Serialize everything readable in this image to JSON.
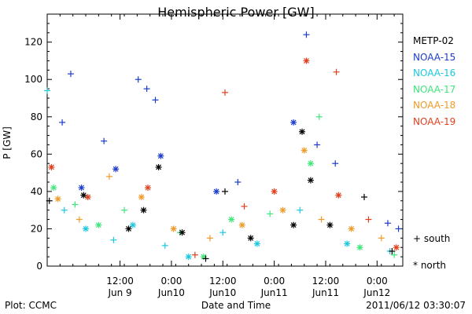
{
  "title": "Hemispheric Power [GW]",
  "footer": {
    "left": "Plot: CCMC",
    "center": "Date and Time",
    "right": "2011/06/12 03:30:07"
  },
  "legend": [
    {
      "name": "METP-02",
      "color": "#000000"
    },
    {
      "name": "NOAA-15",
      "color": "#1c3ccc"
    },
    {
      "name": "NOAA-16",
      "color": "#1cc8e0"
    },
    {
      "name": "NOAA-17",
      "color": "#3ee67a"
    },
    {
      "name": "NOAA-18",
      "color": "#f09a28"
    },
    {
      "name": "NOAA-19",
      "color": "#e0401e"
    }
  ],
  "marker_legend": [
    {
      "symbol": "+",
      "label": "south"
    },
    {
      "symbol": "*",
      "label": "north"
    }
  ],
  "chart_data": {
    "type": "scatter",
    "title": "Hemispheric Power [GW]",
    "xlabel": "Date and Time",
    "ylabel": "P [GW]",
    "x_range": [
      "2011-06-08 19:00",
      "2011-06-12 06:00"
    ],
    "ylim": [
      0,
      135
    ],
    "y_ticks": [
      0,
      20,
      40,
      60,
      80,
      100,
      120
    ],
    "x_ticks": [
      {
        "t": "2011-06-09 12:00",
        "label1": "12:00",
        "label2": "Jun 9"
      },
      {
        "t": "2011-06-10 00:00",
        "label1": "0:00",
        "label2": "Jun10"
      },
      {
        "t": "2011-06-10 12:00",
        "label1": "12:00",
        "label2": "Jun10"
      },
      {
        "t": "2011-06-11 00:00",
        "label1": "0:00",
        "label2": "Jun11"
      },
      {
        "t": "2011-06-11 12:00",
        "label1": "12:00",
        "label2": "Jun11"
      },
      {
        "t": "2011-06-12 00:00",
        "label1": "0:00",
        "label2": "Jun12"
      }
    ],
    "grid": false,
    "series": [
      {
        "name": "NOAA-15",
        "color": "#1c3ccc",
        "points": [
          [
            "2011-06-08 22:30",
            77,
            "+"
          ],
          [
            "2011-06-09 00:30",
            103,
            "+"
          ],
          [
            "2011-06-09 03:00",
            42,
            "*"
          ],
          [
            "2011-06-09 08:15",
            67,
            "+"
          ],
          [
            "2011-06-09 11:00",
            52,
            "*"
          ],
          [
            "2011-06-09 16:15",
            100,
            "+"
          ],
          [
            "2011-06-09 18:15",
            95,
            "+"
          ],
          [
            "2011-06-09 20:15",
            89,
            "+"
          ],
          [
            "2011-06-09 21:30",
            59,
            "*"
          ],
          [
            "2011-06-10 10:30",
            40,
            "*"
          ],
          [
            "2011-06-10 15:30",
            45,
            "+"
          ],
          [
            "2011-06-11 04:30",
            77,
            "*"
          ],
          [
            "2011-06-11 07:30",
            124,
            "+"
          ],
          [
            "2011-06-11 10:00",
            65,
            "+"
          ],
          [
            "2011-06-11 14:15",
            55,
            "+"
          ],
          [
            "2011-06-12 02:30",
            23,
            "+"
          ],
          [
            "2011-06-12 05:00",
            20,
            "+"
          ]
        ]
      },
      {
        "name": "NOAA-16",
        "color": "#1cc8e0",
        "points": [
          [
            "2011-06-08 19:00",
            94,
            "+"
          ],
          [
            "2011-06-08 23:00",
            30,
            "+"
          ],
          [
            "2011-06-09 04:00",
            20,
            "*"
          ],
          [
            "2011-06-09 10:30",
            14,
            "+"
          ],
          [
            "2011-06-09 15:00",
            22,
            "*"
          ],
          [
            "2011-06-09 22:30",
            11,
            "+"
          ],
          [
            "2011-06-10 04:00",
            5,
            "*"
          ],
          [
            "2011-06-10 12:00",
            18,
            "+"
          ],
          [
            "2011-06-10 20:00",
            12,
            "*"
          ],
          [
            "2011-06-11 06:00",
            30,
            "+"
          ],
          [
            "2011-06-11 17:00",
            12,
            "*"
          ],
          [
            "2011-06-12 03:00",
            8,
            "+"
          ]
        ]
      },
      {
        "name": "NOAA-17",
        "color": "#3ee67a",
        "points": [
          [
            "2011-06-08 20:30",
            42,
            "*"
          ],
          [
            "2011-06-09 01:30",
            33,
            "+"
          ],
          [
            "2011-06-09 07:00",
            22,
            "*"
          ],
          [
            "2011-06-09 13:00",
            30,
            "+"
          ],
          [
            "2011-06-10 02:00",
            18,
            "+"
          ],
          [
            "2011-06-10 07:30",
            5,
            "*"
          ],
          [
            "2011-06-10 14:00",
            25,
            "*"
          ],
          [
            "2011-06-10 23:00",
            28,
            "+"
          ],
          [
            "2011-06-11 08:30",
            55,
            "*"
          ],
          [
            "2011-06-11 10:30",
            80,
            "+"
          ],
          [
            "2011-06-11 20:00",
            10,
            "*"
          ],
          [
            "2011-06-12 04:00",
            6,
            "+"
          ]
        ]
      },
      {
        "name": "NOAA-18",
        "color": "#f09a28",
        "points": [
          [
            "2011-06-08 21:30",
            36,
            "*"
          ],
          [
            "2011-06-09 02:30",
            25,
            "+"
          ],
          [
            "2011-06-09 09:30",
            48,
            "+"
          ],
          [
            "2011-06-09 17:00",
            37,
            "*"
          ],
          [
            "2011-06-10 00:30",
            20,
            "*"
          ],
          [
            "2011-06-10 09:00",
            15,
            "+"
          ],
          [
            "2011-06-10 16:30",
            22,
            "*"
          ],
          [
            "2011-06-11 02:00",
            30,
            "*"
          ],
          [
            "2011-06-11 07:00",
            62,
            "*"
          ],
          [
            "2011-06-11 11:00",
            25,
            "+"
          ],
          [
            "2011-06-11 18:00",
            20,
            "*"
          ],
          [
            "2011-06-12 01:00",
            15,
            "+"
          ]
        ]
      },
      {
        "name": "NOAA-19",
        "color": "#e0401e",
        "points": [
          [
            "2011-06-08 20:00",
            53,
            "*"
          ],
          [
            "2011-06-09 04:30",
            37,
            "*"
          ],
          [
            "2011-06-09 18:30",
            42,
            "*"
          ],
          [
            "2011-06-10 05:30",
            6,
            "+"
          ],
          [
            "2011-06-10 12:30",
            93,
            "+"
          ],
          [
            "2011-06-10 17:00",
            32,
            "+"
          ],
          [
            "2011-06-11 00:00",
            40,
            "*"
          ],
          [
            "2011-06-11 07:30",
            110,
            "*"
          ],
          [
            "2011-06-11 14:30",
            104,
            "+"
          ],
          [
            "2011-06-11 15:00",
            38,
            "*"
          ],
          [
            "2011-06-11 22:00",
            25,
            "+"
          ],
          [
            "2011-06-12 04:30",
            10,
            "*"
          ]
        ]
      },
      {
        "name": "METP-02",
        "color": "#000000",
        "points": [
          [
            "2011-06-08 19:30",
            35,
            "+"
          ],
          [
            "2011-06-09 03:30",
            38,
            "*"
          ],
          [
            "2011-06-09 14:00",
            20,
            "*"
          ],
          [
            "2011-06-09 17:30",
            30,
            "*"
          ],
          [
            "2011-06-09 21:00",
            53,
            "*"
          ],
          [
            "2011-06-10 02:30",
            18,
            "*"
          ],
          [
            "2011-06-10 08:00",
            4,
            "+"
          ],
          [
            "2011-06-10 12:30",
            40,
            "+"
          ],
          [
            "2011-06-10 18:30",
            15,
            "*"
          ],
          [
            "2011-06-11 04:30",
            22,
            "*"
          ],
          [
            "2011-06-11 06:30",
            72,
            "*"
          ],
          [
            "2011-06-11 08:30",
            46,
            "*"
          ],
          [
            "2011-06-11 13:00",
            22,
            "*"
          ],
          [
            "2011-06-11 21:00",
            37,
            "+"
          ],
          [
            "2011-06-12 03:30",
            8,
            "+"
          ]
        ]
      }
    ]
  }
}
